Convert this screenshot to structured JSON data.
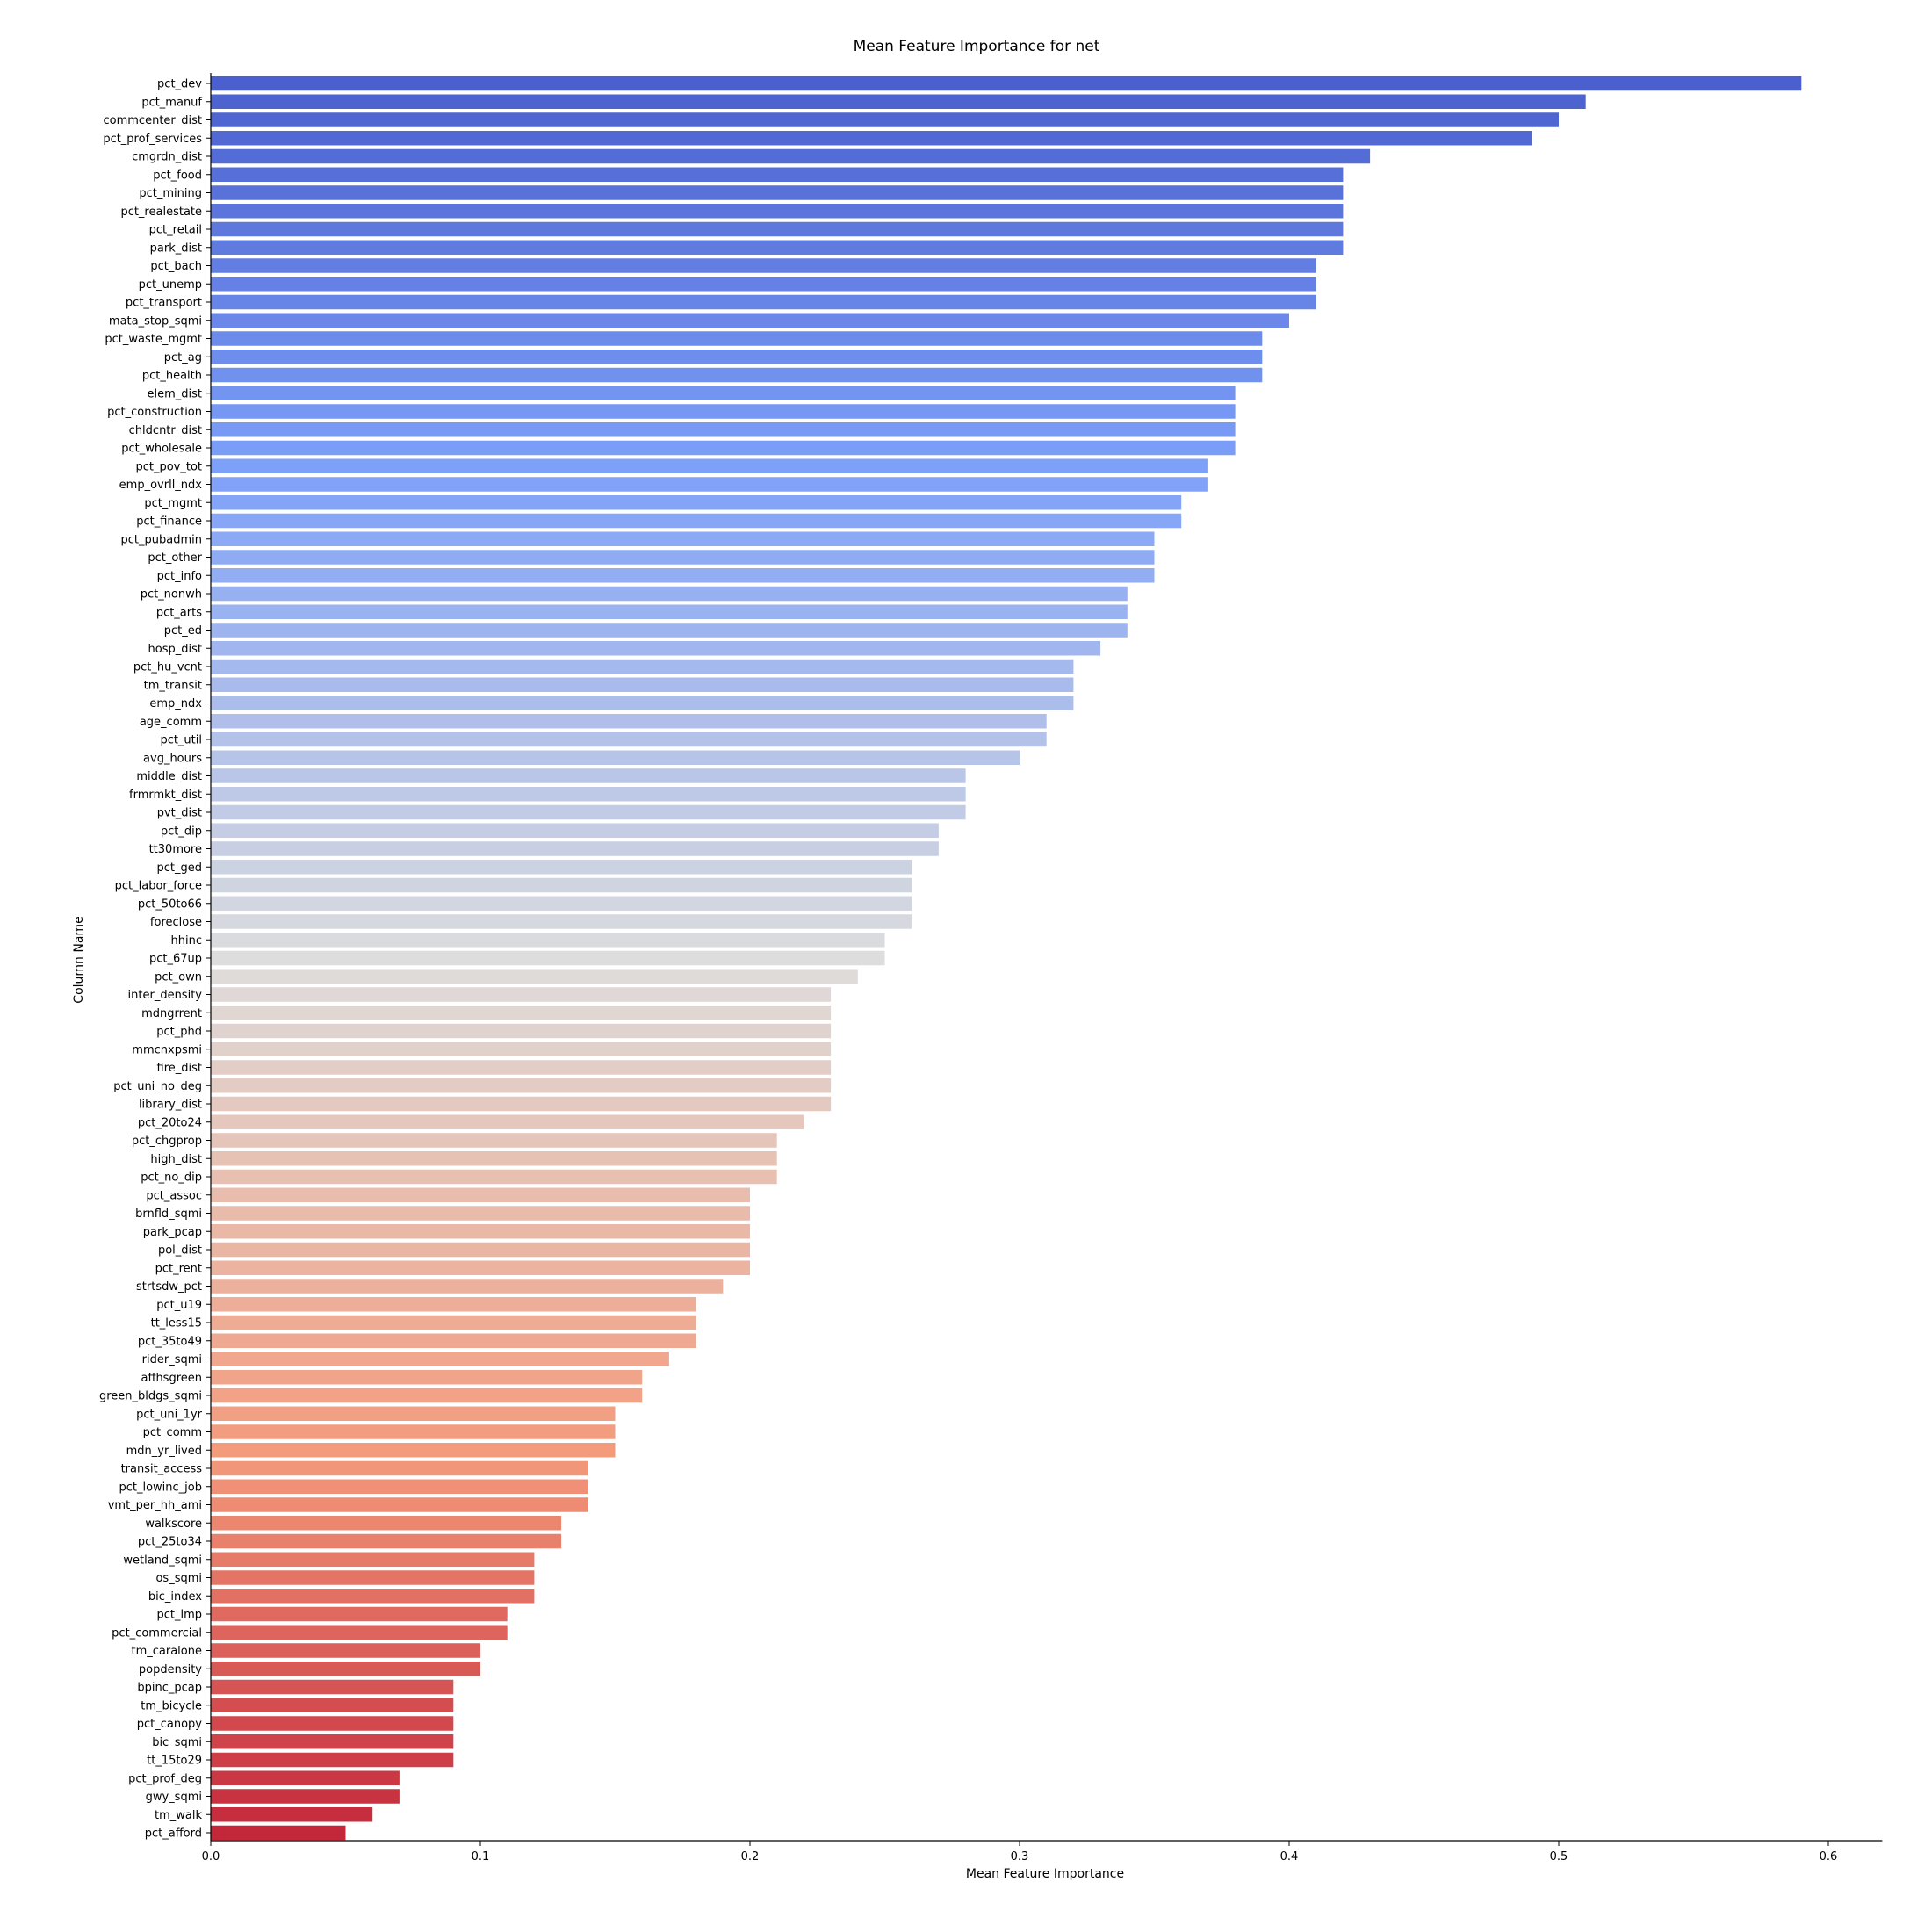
{
  "chart_data": {
    "type": "bar",
    "orientation": "horizontal",
    "title": "Mean Feature Importance for net",
    "xlabel": "Mean Feature Importance",
    "ylabel": "Column Name",
    "xlim": [
      0,
      0.62
    ],
    "xticks": [
      0.0,
      0.1,
      0.2,
      0.3,
      0.4,
      0.5,
      0.6
    ],
    "xtick_labels": [
      "0.0",
      "0.1",
      "0.2",
      "0.3",
      "0.4",
      "0.5",
      "0.6"
    ],
    "grid": false,
    "palette": "coolwarm",
    "categories": [
      "pct_dev",
      "pct_manuf",
      "commcenter_dist",
      "pct_prof_services",
      "cmgrdn_dist",
      "pct_food",
      "pct_mining",
      "pct_realestate",
      "pct_retail",
      "park_dist",
      "pct_bach",
      "pct_unemp",
      "pct_transport",
      "mata_stop_sqmi",
      "pct_waste_mgmt",
      "pct_ag",
      "pct_health",
      "elem_dist",
      "pct_construction",
      "chldcntr_dist",
      "pct_wholesale",
      "pct_pov_tot",
      "emp_ovrll_ndx",
      "pct_mgmt",
      "pct_finance",
      "pct_pubadmin",
      "pct_other",
      "pct_info",
      "pct_nonwh",
      "pct_arts",
      "pct_ed",
      "hosp_dist",
      "pct_hu_vcnt",
      "tm_transit",
      "emp_ndx",
      "age_comm",
      "pct_util",
      "avg_hours",
      "middle_dist",
      "frmrmkt_dist",
      "pvt_dist",
      "pct_dip",
      "tt30more",
      "pct_ged",
      "pct_labor_force",
      "pct_50to66",
      "foreclose",
      "hhinc",
      "pct_67up",
      "pct_own",
      "inter_density",
      "mdngrrent",
      "pct_phd",
      "mmcnxpsmi",
      "fire_dist",
      "pct_uni_no_deg",
      "library_dist",
      "pct_20to24",
      "pct_chgprop",
      "high_dist",
      "pct_no_dip",
      "pct_assoc",
      "brnfld_sqmi",
      "park_pcap",
      "pol_dist",
      "pct_rent",
      "strtsdw_pct",
      "pct_u19",
      "tt_less15",
      "pct_35to49",
      "rider_sqmi",
      "affhsgreen",
      "green_bldgs_sqmi",
      "pct_uni_1yr",
      "pct_comm",
      "mdn_yr_lived",
      "transit_access",
      "pct_lowinc_job",
      "vmt_per_hh_ami",
      "walkscore",
      "pct_25to34",
      "wetland_sqmi",
      "os_sqmi",
      "bic_index",
      "pct_imp",
      "pct_commercial",
      "tm_caralone",
      "popdensity",
      "bpinc_pcap",
      "tm_bicycle",
      "pct_canopy",
      "bic_sqmi",
      "tt_15to29",
      "pct_prof_deg",
      "gwy_sqmi",
      "tm_walk",
      "pct_afford"
    ],
    "values": [
      0.59,
      0.51,
      0.5,
      0.49,
      0.43,
      0.42,
      0.42,
      0.42,
      0.42,
      0.42,
      0.41,
      0.41,
      0.41,
      0.4,
      0.39,
      0.39,
      0.39,
      0.38,
      0.38,
      0.38,
      0.38,
      0.37,
      0.37,
      0.36,
      0.36,
      0.35,
      0.35,
      0.35,
      0.34,
      0.34,
      0.34,
      0.33,
      0.32,
      0.32,
      0.32,
      0.31,
      0.31,
      0.3,
      0.28,
      0.28,
      0.28,
      0.27,
      0.27,
      0.26,
      0.26,
      0.26,
      0.26,
      0.25,
      0.25,
      0.24,
      0.23,
      0.23,
      0.23,
      0.23,
      0.23,
      0.23,
      0.23,
      0.22,
      0.21,
      0.21,
      0.21,
      0.2,
      0.2,
      0.2,
      0.2,
      0.2,
      0.19,
      0.18,
      0.18,
      0.18,
      0.17,
      0.16,
      0.16,
      0.15,
      0.15,
      0.15,
      0.14,
      0.14,
      0.14,
      0.13,
      0.13,
      0.12,
      0.12,
      0.12,
      0.11,
      0.11,
      0.1,
      0.1,
      0.09,
      0.09,
      0.09,
      0.09,
      0.09,
      0.07,
      0.07,
      0.06,
      0.05
    ]
  }
}
